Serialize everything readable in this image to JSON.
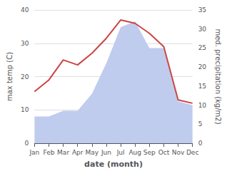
{
  "chart_data": {
    "type": "line",
    "xlabel": "date (month)",
    "ylabel": "max temp (C)",
    "y2label": "med. precipitation (kg/m2)",
    "categories": [
      "Jan",
      "Feb",
      "Mar",
      "Apr",
      "May",
      "Jun",
      "Jul",
      "Aug",
      "Sep",
      "Oct",
      "Nov",
      "Dec"
    ],
    "series": [
      {
        "type": "area",
        "axis": "y2",
        "color": "#c0ccee",
        "values": [
          7.0,
          7.0,
          8.5,
          8.5,
          13.0,
          21.0,
          30.5,
          32.0,
          25.0,
          25.0,
          11.0,
          10.0
        ]
      },
      {
        "type": "line",
        "color": "#cc4444",
        "values": [
          15.5,
          19.0,
          25.0,
          23.5,
          27.0,
          31.5,
          37.0,
          36.0,
          33.0,
          29.0,
          13.0,
          12.0
        ]
      }
    ],
    "ylim": [
      0,
      40
    ],
    "yticks": [
      0,
      10,
      20,
      30,
      40
    ],
    "y2lim": [
      0,
      35
    ],
    "y2ticks": [
      0,
      5,
      10,
      15,
      20,
      25,
      30,
      35
    ],
    "grid": true
  }
}
